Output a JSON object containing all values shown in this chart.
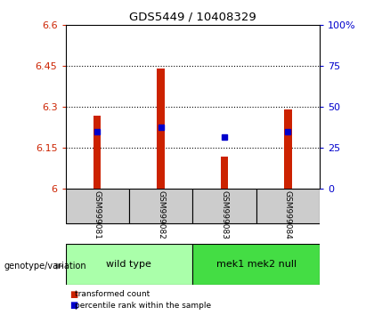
{
  "title": "GDS5449 / 10408329",
  "samples": [
    "GSM999081",
    "GSM999082",
    "GSM999083",
    "GSM999084"
  ],
  "bar_values": [
    6.27,
    6.44,
    6.12,
    6.29
  ],
  "bar_base": 6.0,
  "blue_values": [
    6.21,
    6.225,
    6.19,
    6.21
  ],
  "bar_color": "#cc2200",
  "blue_color": "#0000cc",
  "ylim": [
    6.0,
    6.6
  ],
  "yticks_left": [
    6.0,
    6.15,
    6.3,
    6.45,
    6.6
  ],
  "yticks_right": [
    0,
    25,
    50,
    75,
    100
  ],
  "ytick_labels_left": [
    "6",
    "6.15",
    "6.3",
    "6.45",
    "6.6"
  ],
  "ytick_labels_right": [
    "0",
    "25",
    "50",
    "75",
    "100%"
  ],
  "grid_values": [
    6.15,
    6.3,
    6.45
  ],
  "groups": [
    {
      "label": "wild type",
      "samples": [
        0,
        1
      ],
      "color": "#aaffaa"
    },
    {
      "label": "mek1 mek2 null",
      "samples": [
        2,
        3
      ],
      "color": "#44dd44"
    }
  ],
  "genotype_label": "genotype/variation",
  "legend_items": [
    {
      "label": "transformed count",
      "color": "#cc2200"
    },
    {
      "label": "percentile rank within the sample",
      "color": "#0000cc"
    }
  ],
  "bar_width": 0.12,
  "background_color": "#ffffff",
  "plot_bg": "#ffffff",
  "gray_color": "#cccccc",
  "group_colors": [
    "#aaffaa",
    "#44dd44"
  ]
}
